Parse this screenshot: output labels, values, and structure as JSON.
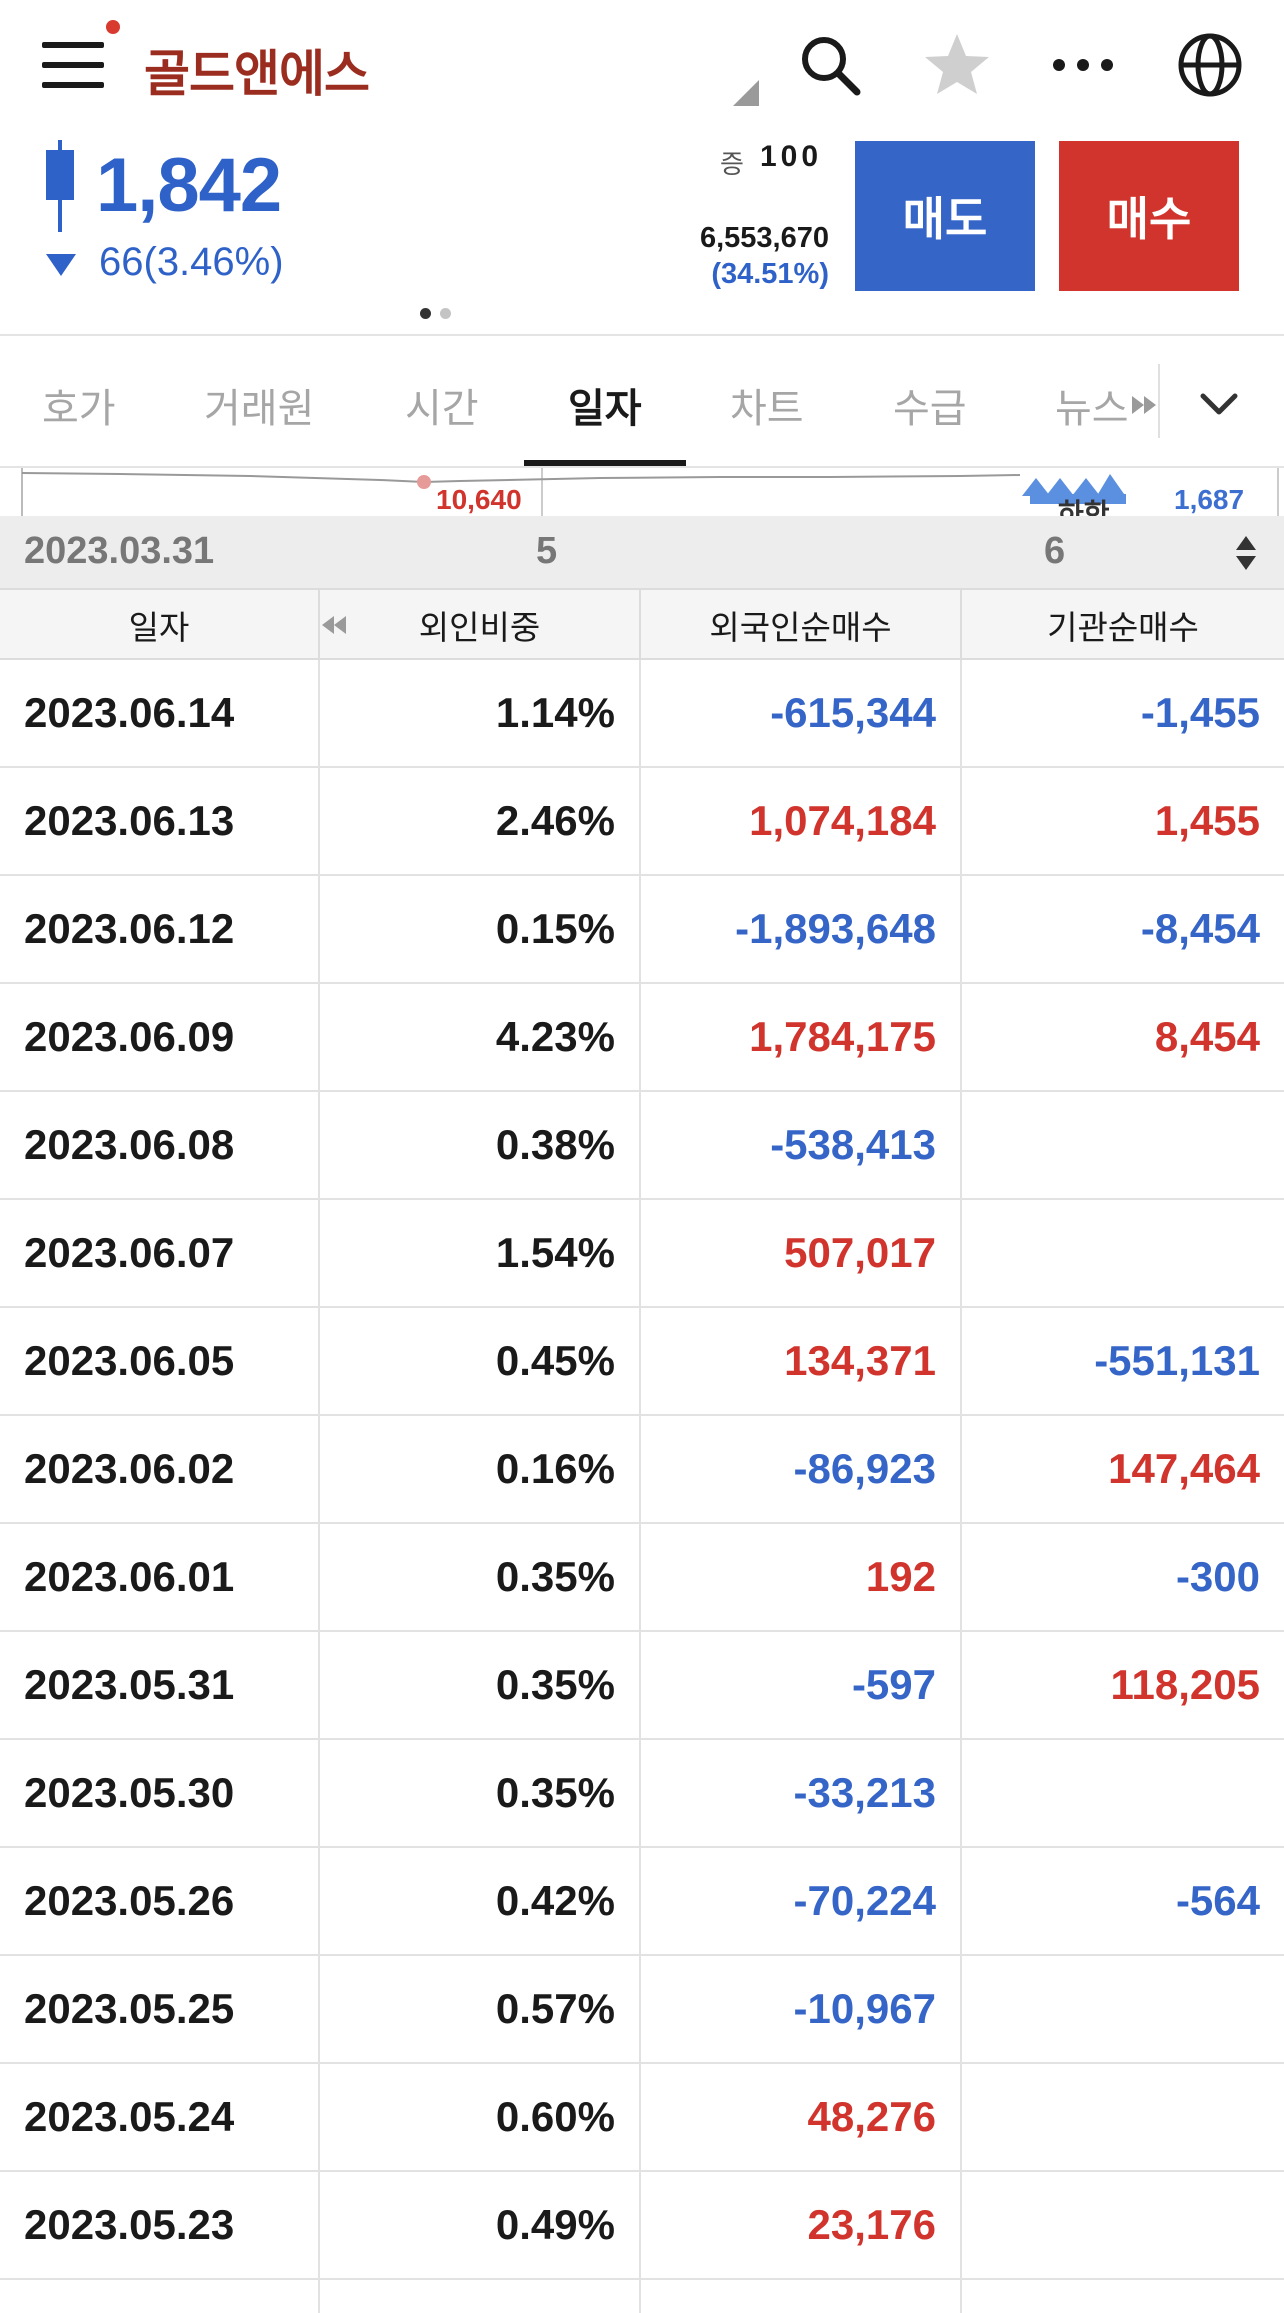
{
  "header": {
    "stock_name": "골드앤에스",
    "icons": [
      "menu-icon",
      "search-icon",
      "star-icon",
      "more-icon",
      "globe-icon"
    ]
  },
  "quote": {
    "price": "1,842",
    "change": "66(3.46%)",
    "volume_label": "증",
    "volume": "100",
    "amount": "6,553,670",
    "amount_rate": "(34.51%)",
    "sell_label": "매도",
    "buy_label": "매수"
  },
  "tabs": [
    {
      "label": "호가"
    },
    {
      "label": "거래원"
    },
    {
      "label": "시간"
    },
    {
      "label": "일자",
      "active": true
    },
    {
      "label": "차트"
    },
    {
      "label": "수급"
    },
    {
      "label": "뉴스"
    }
  ],
  "mini_chart": {
    "low_label": "10,640",
    "high_label": "1,687",
    "tag_label": "하한"
  },
  "range": {
    "date": "2023.03.31",
    "a": "5",
    "b": "6"
  },
  "table": {
    "headers": [
      "일자",
      "외인비중",
      "외국인순매수",
      "기관순매수"
    ],
    "rows": [
      {
        "date": "2023.06.14",
        "ratio": "1.14%",
        "foreign": "-615,344",
        "inst": "-1,455"
      },
      {
        "date": "2023.06.13",
        "ratio": "2.46%",
        "foreign": "1,074,184",
        "inst": "1,455"
      },
      {
        "date": "2023.06.12",
        "ratio": "0.15%",
        "foreign": "-1,893,648",
        "inst": "-8,454"
      },
      {
        "date": "2023.06.09",
        "ratio": "4.23%",
        "foreign": "1,784,175",
        "inst": "8,454"
      },
      {
        "date": "2023.06.08",
        "ratio": "0.38%",
        "foreign": "-538,413",
        "inst": ""
      },
      {
        "date": "2023.06.07",
        "ratio": "1.54%",
        "foreign": "507,017",
        "inst": ""
      },
      {
        "date": "2023.06.05",
        "ratio": "0.45%",
        "foreign": "134,371",
        "inst": "-551,131"
      },
      {
        "date": "2023.06.02",
        "ratio": "0.16%",
        "foreign": "-86,923",
        "inst": "147,464"
      },
      {
        "date": "2023.06.01",
        "ratio": "0.35%",
        "foreign": "192",
        "inst": "-300"
      },
      {
        "date": "2023.05.31",
        "ratio": "0.35%",
        "foreign": "-597",
        "inst": "118,205"
      },
      {
        "date": "2023.05.30",
        "ratio": "0.35%",
        "foreign": "-33,213",
        "inst": ""
      },
      {
        "date": "2023.05.26",
        "ratio": "0.42%",
        "foreign": "-70,224",
        "inst": "-564"
      },
      {
        "date": "2023.05.25",
        "ratio": "0.57%",
        "foreign": "-10,967",
        "inst": ""
      },
      {
        "date": "2023.05.24",
        "ratio": "0.60%",
        "foreign": "48,276",
        "inst": ""
      },
      {
        "date": "2023.05.23",
        "ratio": "0.49%",
        "foreign": "23,176",
        "inst": ""
      }
    ]
  },
  "colors": {
    "up": "#d0342c",
    "down": "#3665c8",
    "name": "#9b2d20"
  }
}
